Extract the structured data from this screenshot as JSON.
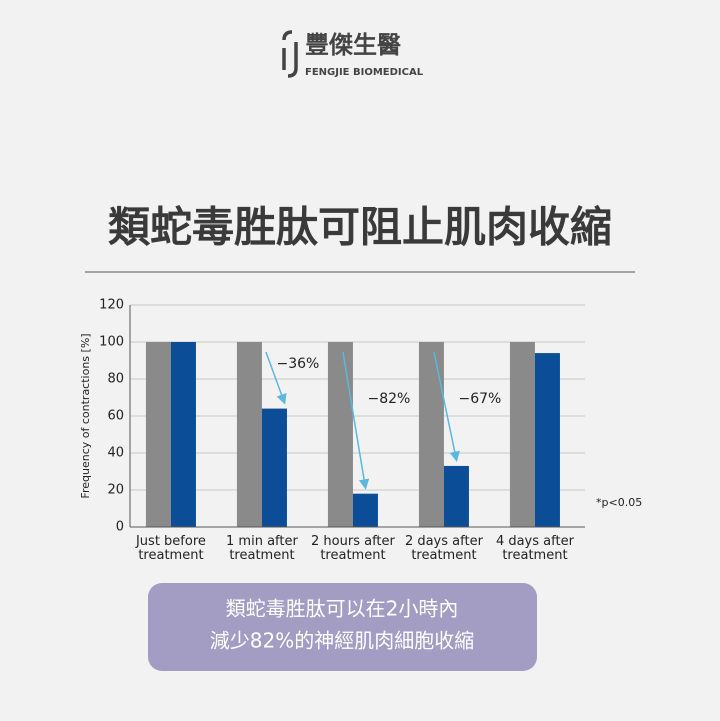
{
  "header": {
    "brand": "豐傑生醫",
    "brand_en": "FENGJIE BIOMEDICAL",
    "headline": "類蛇毒胜肽可阻止肌肉收縮"
  },
  "chart_data": {
    "type": "bar",
    "categories": [
      "Just before treatment",
      "1 min after treatment",
      "2 hours after treatment",
      "2 days after treatment",
      "4 days after treatment"
    ],
    "series": [
      {
        "color": "#8a8a8a",
        "values": [
          100,
          100,
          100,
          100,
          100
        ]
      },
      {
        "color": "#0b4e97",
        "values": [
          100,
          64,
          18,
          33,
          94
        ]
      }
    ],
    "y_label": "Frequency of contractions [%]",
    "ylim": [
      0,
      120
    ],
    "yticks": [
      0,
      20,
      40,
      60,
      80,
      100,
      120
    ],
    "grid": true,
    "annotations": [
      "−36%",
      "−82%",
      "−67%"
    ],
    "note": "*p<0.05"
  },
  "caption": [
    "類蛇毒胜肽可以在2小時內",
    "減少82%的神經肌肉細胞收縮"
  ]
}
